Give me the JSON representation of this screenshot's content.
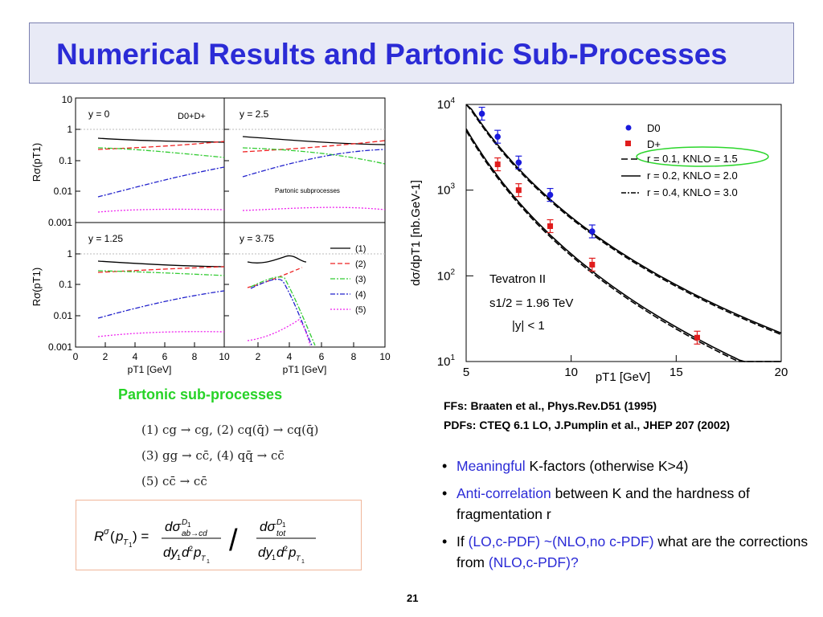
{
  "title": "Numerical Results and Partonic Sub-Processes",
  "left_figure": {
    "panels": [
      {
        "label": "y = 0",
        "corner_label": "D0+D+"
      },
      {
        "label": "y = 2.5",
        "inner_note": "Partonic subprocesses"
      },
      {
        "label": "y = 1.25"
      },
      {
        "label": "y = 3.75"
      }
    ],
    "y_ticks_top": [
      "10",
      "1",
      "0.1",
      "0.01",
      "0.001"
    ],
    "y_ticks_bottom": [
      "1",
      "0.1",
      "0.01",
      "0.001"
    ],
    "x_ticks_left": [
      "0",
      "2",
      "4",
      "6",
      "8",
      "10"
    ],
    "x_ticks_right": [
      "2",
      "4",
      "6",
      "8",
      "10"
    ],
    "ylabel": "Rσ(pT1)",
    "xlabel": "pT1 [GeV]",
    "legend": [
      "(1)",
      "(2)",
      "(3)",
      "(4)",
      "(5)"
    ]
  },
  "green_caption": "Partonic sub-processes",
  "processes": [
    "(1) cg → cg,  (2) cq(q̄) → cq(q̄)",
    "(3) gg → cc̄,  (4) qq̄ → cc̄",
    "(5) cc̄ → cc̄"
  ],
  "chart_data": {
    "type": "scatter",
    "title": "",
    "xlabel": "pT1 [GeV]",
    "ylabel": "dσ/dpT1 [nb.GeV-1]",
    "xlim": [
      5,
      20
    ],
    "ylim": [
      10,
      10000
    ],
    "yscale": "log",
    "x_ticks": [
      "5",
      "10",
      "15",
      "20"
    ],
    "y_ticks": [
      "10^1",
      "10^2",
      "10^3",
      "10^4"
    ],
    "series": [
      {
        "name": "D0",
        "color": "#1a1adc",
        "marker": "circle",
        "x": [
          5.75,
          6.5,
          7.5,
          9.0,
          11.0
        ],
        "y": [
          7800,
          4200,
          2100,
          880,
          330
        ]
      },
      {
        "name": "D+",
        "color": "#e01c1c",
        "marker": "square",
        "x": [
          6.5,
          7.5,
          9.0,
          11.0,
          16.0
        ],
        "y": [
          2000,
          1000,
          380,
          135,
          19
        ]
      }
    ],
    "curves_legend": [
      "r = 0.1, KNLO = 1.5",
      "r = 0.2, KNLO = 2.0",
      "r = 0.4, KNLO = 3.0"
    ],
    "annotations": [
      "Tevatron II",
      "s1/2 = 1.96 TeV",
      "|y| < 1"
    ]
  },
  "refs": [
    "FFs: Braaten et al., Phys.Rev.D51 (1995)",
    "PDFs: CTEQ 6.1 LO, J.Pumplin et al., JHEP 207 (2002)"
  ],
  "bullets": [
    {
      "colored": "Meaningful",
      "rest": " K-factors (otherwise K>4)"
    },
    {
      "colored": "Anti-correlation",
      "rest": " between K and the hardness of fragmentation r"
    },
    {
      "pre": "If ",
      "colored": "(LO,c-PDF) ~(NLO,no c-PDF)",
      "mid": " what are the corrections from ",
      "colored2": "(NLO,c-PDF)?"
    }
  ],
  "slide_number": "21"
}
